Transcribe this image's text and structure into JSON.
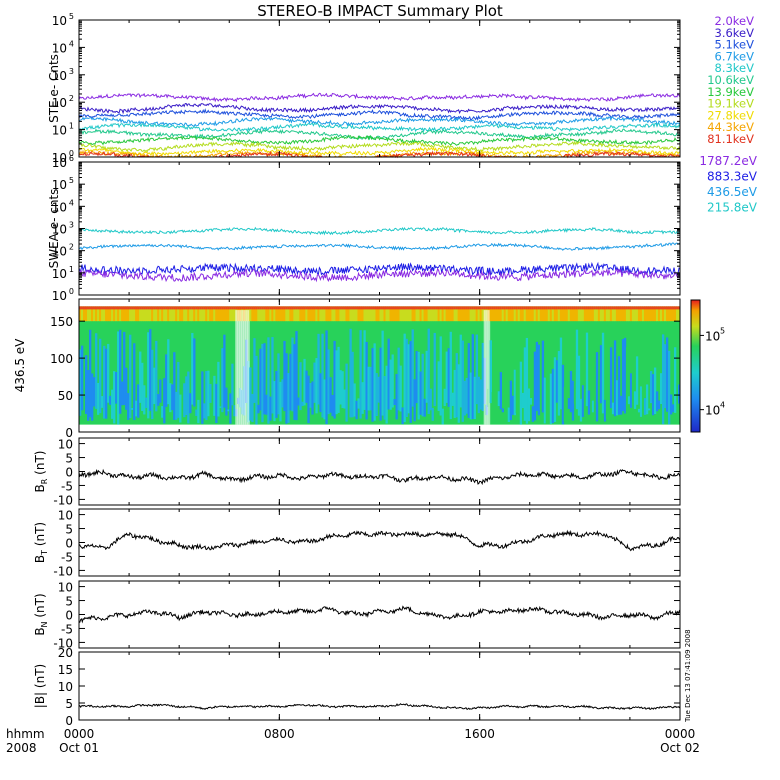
{
  "title": "STEREO-B IMPACT Summary Plot",
  "bottom_left": {
    "line1": "hhmm",
    "line2": "2008"
  },
  "time_axis": {
    "ticks": [
      {
        "hour": 0,
        "line1": "0000",
        "line2": "Oct 01"
      },
      {
        "hour": 8,
        "line1": "0800",
        "line2": ""
      },
      {
        "hour": 16,
        "line1": "1600",
        "line2": ""
      },
      {
        "hour": 24,
        "line1": "0000",
        "line2": "Oct 02"
      }
    ],
    "range_hours": [
      0,
      24
    ]
  },
  "side_note": "Tue Dec 13 07:41:09 2008",
  "ste_legend": [
    {
      "label": "2.0keV",
      "color": "#8a2be2"
    },
    {
      "label": "3.6keV",
      "color": "#3a1ec8"
    },
    {
      "label": "5.1keV",
      "color": "#1e50dc"
    },
    {
      "label": "6.7keV",
      "color": "#1e9be6"
    },
    {
      "label": "8.3keV",
      "color": "#21c8c8"
    },
    {
      "label": "10.6keV",
      "color": "#22c88c"
    },
    {
      "label": "13.9keV",
      "color": "#28c83c"
    },
    {
      "label": "19.1keV",
      "color": "#b4dc1e"
    },
    {
      "label": "27.8keV",
      "color": "#f0dc00"
    },
    {
      "label": "44.3keV",
      "color": "#f5a500"
    },
    {
      "label": "81.1keV",
      "color": "#e1321e"
    }
  ],
  "swea_legend": [
    {
      "label": "1787.2eV",
      "color": "#8a2be2"
    },
    {
      "label": "883.3eV",
      "color": "#1e1ee6"
    },
    {
      "label": "436.5eV",
      "color": "#1e9be6"
    },
    {
      "label": "215.8eV",
      "color": "#21c8c8"
    }
  ],
  "colorbar": {
    "ticks": [
      {
        "value": 100000,
        "label": "10",
        "exp": "5"
      },
      {
        "value": 10000,
        "label": "10",
        "exp": "4"
      }
    ]
  },
  "chart_data": [
    {
      "type": "line",
      "log_y": true,
      "ylabel": "STE e- Cnts",
      "ylim": [
        1,
        100000
      ],
      "yticks": [
        {
          "base": "10",
          "exp": "0"
        },
        {
          "base": "10",
          "exp": "1"
        },
        {
          "base": "10",
          "exp": "2"
        },
        {
          "base": "10",
          "exp": "3"
        },
        {
          "base": "10",
          "exp": "4"
        },
        {
          "base": "10",
          "exp": "5"
        }
      ],
      "series": [
        {
          "name": "2.0keV",
          "level": 150
        },
        {
          "name": "3.6keV",
          "level": 60
        },
        {
          "name": "5.1keV",
          "level": 35
        },
        {
          "name": "6.7keV",
          "level": 20
        },
        {
          "name": "8.3keV",
          "level": 12
        },
        {
          "name": "10.6keV",
          "level": 7
        },
        {
          "name": "13.9keV",
          "level": 4
        },
        {
          "name": "19.1keV",
          "level": 2.5
        },
        {
          "name": "27.8keV",
          "level": 1.6
        },
        {
          "name": "44.3keV",
          "level": 1.2
        },
        {
          "name": "81.1keV",
          "level": 1.05
        }
      ]
    },
    {
      "type": "line",
      "log_y": true,
      "ylabel": "SWEA e- cnts",
      "ylim": [
        1,
        1000000
      ],
      "yticks": [
        {
          "base": "10",
          "exp": "0"
        },
        {
          "base": "10",
          "exp": "1"
        },
        {
          "base": "10",
          "exp": "2"
        },
        {
          "base": "10",
          "exp": "3"
        },
        {
          "base": "10",
          "exp": "4"
        },
        {
          "base": "10",
          "exp": "5"
        },
        {
          "base": "10",
          "exp": "6"
        }
      ],
      "series": [
        {
          "name": "215.8eV",
          "level": 800
        },
        {
          "name": "436.5eV",
          "level": 150
        },
        {
          "name": "883.3eV",
          "level": 15
        },
        {
          "name": "1787.2eV",
          "level": 8
        }
      ]
    },
    {
      "type": "heatmap",
      "ylabel": "436.5 eV",
      "ylim": [
        0,
        180
      ],
      "yticks": [
        0,
        50,
        100,
        150
      ],
      "color_range": [
        5000,
        300000
      ]
    },
    {
      "type": "line",
      "ylabel_main": "B",
      "ylabel_sub": "R",
      "ylabel_unit": " (nT)",
      "ylim": [
        -12,
        12
      ],
      "yticks": [
        -10,
        -5,
        0,
        5,
        10
      ],
      "series": [
        {
          "x": [
            0,
            1,
            2,
            3,
            4,
            5,
            6,
            7,
            8,
            9,
            10,
            11,
            12,
            13,
            14,
            15,
            16,
            17,
            18,
            19,
            20,
            21,
            22,
            23,
            24
          ],
          "y": [
            -1,
            -0.5,
            -2,
            -1.5,
            -2.5,
            -1,
            -3,
            -2,
            -1.5,
            -2.5,
            -1,
            -2,
            -1.5,
            -3,
            -2,
            -2.5,
            -3.5,
            -2,
            -1,
            -1.5,
            -2,
            -1,
            0,
            -2,
            -1.5
          ]
        }
      ]
    },
    {
      "type": "line",
      "ylabel_main": "B",
      "ylabel_sub": "T",
      "ylabel_unit": " (nT)",
      "ylim": [
        -12,
        12
      ],
      "yticks": [
        -10,
        -5,
        0,
        5,
        10
      ],
      "series": [
        {
          "x": [
            0,
            1,
            2,
            3,
            4,
            5,
            6,
            7,
            8,
            9,
            10,
            11,
            12,
            13,
            14,
            15,
            16,
            17,
            18,
            19,
            20,
            21,
            22,
            23,
            24
          ],
          "y": [
            -1,
            -2,
            3,
            1,
            -1,
            -2,
            -1,
            0,
            1,
            0,
            2,
            3,
            3,
            3,
            3,
            3,
            -1,
            -1,
            1,
            3,
            3,
            3,
            -2,
            -1,
            2
          ]
        }
      ]
    },
    {
      "type": "line",
      "ylabel_main": "B",
      "ylabel_sub": "N",
      "ylabel_unit": " (nT)",
      "ylim": [
        -12,
        12
      ],
      "yticks": [
        -10,
        -5,
        0,
        5,
        10
      ],
      "series": [
        {
          "x": [
            0,
            1,
            2,
            3,
            4,
            5,
            6,
            7,
            8,
            9,
            10,
            11,
            12,
            13,
            14,
            15,
            16,
            17,
            18,
            19,
            20,
            21,
            22,
            23,
            24
          ],
          "y": [
            -2,
            -1,
            0,
            1,
            -1,
            1,
            0,
            0,
            1,
            1,
            2,
            0,
            1,
            2,
            0,
            -1,
            1,
            1,
            2,
            1,
            0,
            -1,
            0,
            -1,
            1
          ]
        }
      ]
    },
    {
      "type": "line",
      "ylabel_main": "|B|",
      "ylabel_sub": "",
      "ylabel_unit": " (nT)",
      "ylim": [
        0,
        20
      ],
      "yticks": [
        0,
        5,
        10,
        15,
        20
      ],
      "series": [
        {
          "x": [
            0,
            1,
            2,
            3,
            4,
            5,
            6,
            7,
            8,
            9,
            10,
            11,
            12,
            13,
            14,
            15,
            16,
            17,
            18,
            19,
            20,
            21,
            22,
            23,
            24
          ],
          "y": [
            4,
            4,
            4,
            4.5,
            4,
            3.5,
            4,
            4,
            4,
            4.5,
            4,
            4,
            4,
            4.5,
            4,
            3.5,
            3.5,
            4,
            4,
            4,
            4,
            3.5,
            3.5,
            3.5,
            4
          ]
        }
      ]
    }
  ]
}
